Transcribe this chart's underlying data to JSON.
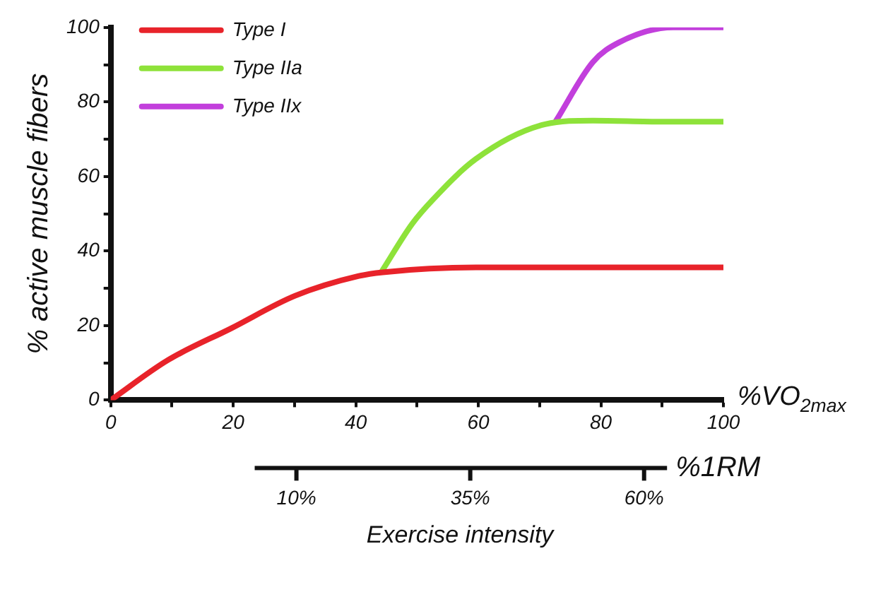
{
  "chart_data": {
    "type": "line",
    "xlabel": "%VO$_{2max}$",
    "ylabel": "% active muscle fibers",
    "x2label": "%1RM",
    "annotations": [
      "Exercise intensity"
    ],
    "series": [
      {
        "name": "Type I",
        "color": "#e8232a",
        "x": [
          0,
          9.3,
          19.7,
          30.1,
          40.5,
          44.4,
          59.6,
          80,
          100
        ],
        "values": [
          0,
          10.7,
          19.3,
          28,
          33.3,
          34.3,
          35.6,
          35.6,
          35.6
        ]
      },
      {
        "name": "Type IIa",
        "color": "#8ee23a",
        "x": [
          44.3,
          49.2,
          52.7,
          59.6,
          70.9,
          78.7,
          90,
          100
        ],
        "values": [
          34.7,
          47.3,
          54,
          64.7,
          74,
          75,
          74.7,
          74.7
        ]
      },
      {
        "name": "Type IIx",
        "color": "#c23fdc",
        "x": [
          72.7,
          78.7,
          83,
          91.8,
          100
        ],
        "values": [
          75,
          90.7,
          96,
          100,
          100
        ]
      }
    ],
    "xlim": [
      0,
      100
    ],
    "xticks": [
      0,
      {
        "value": 10,
        "label": null
      },
      20,
      {
        "value": 30,
        "label": null
      },
      40,
      {
        "value": 50,
        "label": null
      },
      60,
      {
        "value": 70,
        "label": null
      },
      80,
      {
        "value": 90,
        "label": null
      },
      100
    ],
    "ylim": [
      0,
      100
    ],
    "yticks": [
      0,
      {
        "value": 10,
        "label": null
      },
      20,
      {
        "value": 30,
        "label": null
      },
      40,
      {
        "value": 50,
        "label": null
      },
      60,
      {
        "value": 70,
        "label": null
      },
      80,
      {
        "value": 90,
        "label": null
      },
      100
    ],
    "x2lim": [
      4,
      63.3
    ],
    "x2ticks": [
      {
        "value": 10,
        "label": "10%"
      },
      {
        "value": 35,
        "label": "35%"
      },
      {
        "value": 60,
        "label": "60%"
      }
    ],
    "grid": false,
    "legend": "top left",
    "marker": "none",
    "line_style": "solid"
  }
}
